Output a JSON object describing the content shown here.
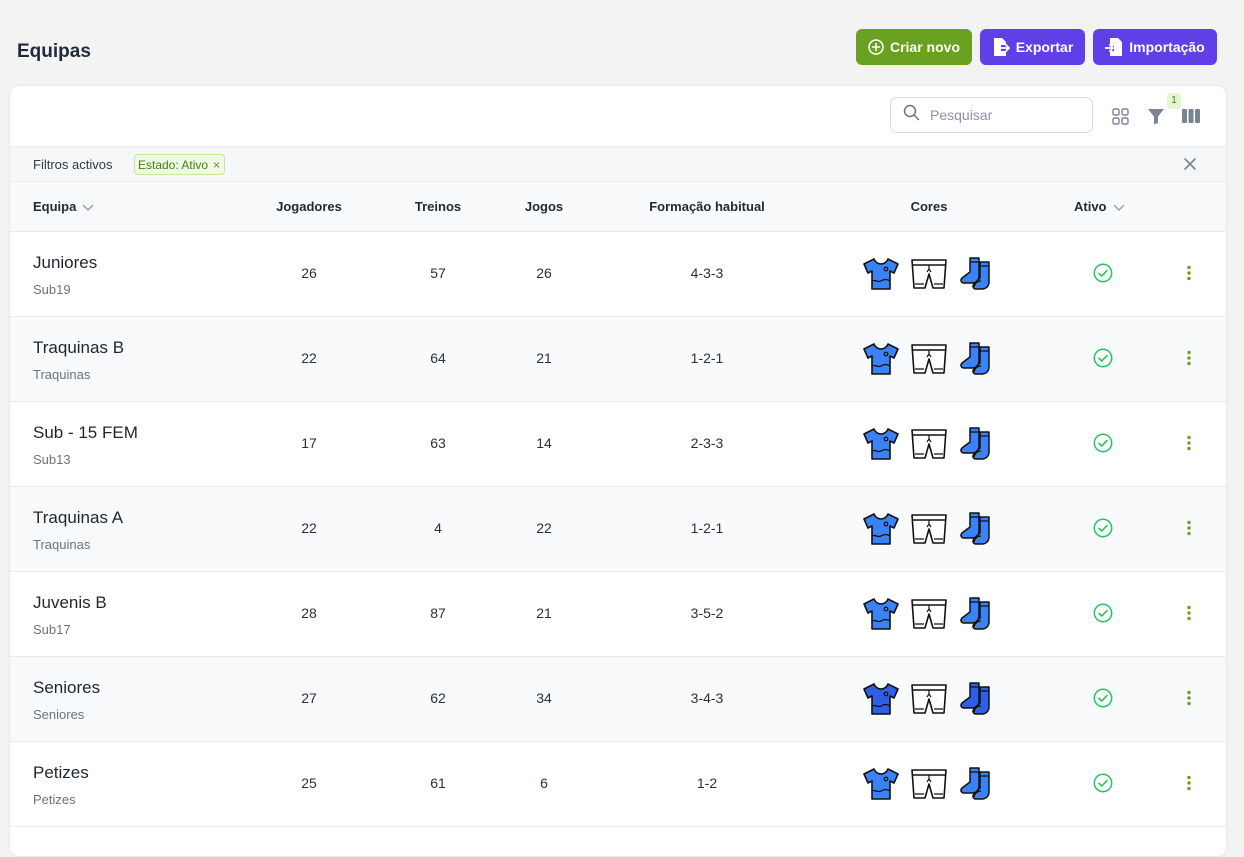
{
  "header": {
    "title": "Equipas",
    "create_label": "Criar novo",
    "export_label": "Exportar",
    "import_label": "Importação"
  },
  "toolbar": {
    "search_placeholder": "Pesquisar",
    "filter_count": "1"
  },
  "filters": {
    "label": "Filtros activos",
    "active": [
      {
        "label": "Estado: Ativo"
      }
    ]
  },
  "table": {
    "columns": {
      "team": "Equipa",
      "players": "Jogadores",
      "trainings": "Treinos",
      "games": "Jogos",
      "formation": "Formação habitual",
      "colors": "Cores",
      "active": "Ativo"
    },
    "rows": [
      {
        "name": "Juniores",
        "category": "Sub19",
        "players": "26",
        "trainings": "57",
        "games": "26",
        "formation": "4-3-3",
        "shirt_color": "#3b82f6",
        "shorts_color": "#ffffff",
        "socks_color": "#3b82f6",
        "active": true
      },
      {
        "name": "Traquinas B",
        "category": "Traquinas",
        "players": "22",
        "trainings": "64",
        "games": "21",
        "formation": "1-2-1",
        "shirt_color": "#3b82f6",
        "shorts_color": "#ffffff",
        "socks_color": "#3b82f6",
        "active": true
      },
      {
        "name": "Sub - 15 FEM",
        "category": "Sub13",
        "players": "17",
        "trainings": "63",
        "games": "14",
        "formation": "2-3-3",
        "shirt_color": "#3b82f6",
        "shorts_color": "#ffffff",
        "socks_color": "#3b82f6",
        "active": true
      },
      {
        "name": "Traquinas A",
        "category": "Traquinas",
        "players": "22",
        "trainings": "4",
        "games": "22",
        "formation": "1-2-1",
        "shirt_color": "#3b82f6",
        "shorts_color": "#ffffff",
        "socks_color": "#3b82f6",
        "active": true
      },
      {
        "name": "Juvenis B",
        "category": "Sub17",
        "players": "28",
        "trainings": "87",
        "games": "21",
        "formation": "3-5-2",
        "shirt_color": "#3b82f6",
        "shorts_color": "#ffffff",
        "socks_color": "#3b82f6",
        "active": true
      },
      {
        "name": "Seniores",
        "category": "Seniores",
        "players": "27",
        "trainings": "62",
        "games": "34",
        "formation": "3-4-3",
        "shirt_color": "#2f5fe6",
        "shorts_color": "#ffffff",
        "socks_color": "#2f5fe6",
        "active": true
      },
      {
        "name": "Petizes",
        "category": "Petizes",
        "players": "25",
        "trainings": "61",
        "games": "6",
        "formation": "1-2",
        "shirt_color": "#3b82f6",
        "shorts_color": "#ffffff",
        "socks_color": "#3b82f6",
        "active": true
      }
    ]
  },
  "colors": {
    "green": "#6aa121",
    "purple": "#6040e6",
    "check": "#22c55e"
  }
}
